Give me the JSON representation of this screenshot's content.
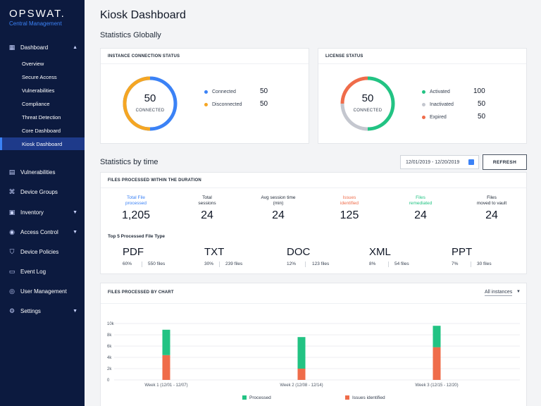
{
  "brand": {
    "name": "OPSWAT.",
    "subtitle": "Central Management"
  },
  "sidebar": {
    "dashboard": {
      "label": "Dashboard",
      "icon": "grid-icon"
    },
    "sub_items": [
      {
        "label": "Overview"
      },
      {
        "label": "Secure Access"
      },
      {
        "label": "Vulnerabilities"
      },
      {
        "label": "Compliance"
      },
      {
        "label": "Threat Detection"
      },
      {
        "label": "Core Dashboard"
      },
      {
        "label": "Kiosk Dashboard"
      }
    ],
    "items": [
      {
        "label": "Vulnerabilities",
        "icon": "document-icon"
      },
      {
        "label": "Device Groups",
        "icon": "network-icon"
      },
      {
        "label": "Inventory",
        "icon": "clipboard-icon"
      },
      {
        "label": "Access Control",
        "icon": "shield-user-icon"
      },
      {
        "label": "Device Policies",
        "icon": "shield-icon"
      },
      {
        "label": "Event Log",
        "icon": "log-icon"
      },
      {
        "label": "User Management",
        "icon": "user-icon"
      },
      {
        "label": "Settings",
        "icon": "gear-icon"
      }
    ]
  },
  "page": {
    "title": "Kiosk Dashboard",
    "section_global": "Statistics Globally",
    "section_time": "Statistics by time"
  },
  "instance_status": {
    "title": "INSTANCE CONNECTION STATUS",
    "center_value": "50",
    "center_label": "CONNECTED",
    "legend": [
      {
        "label": "Connected",
        "value": "50",
        "color": "#3b82f6"
      },
      {
        "label": "Disconnected",
        "value": "50",
        "color": "#f5a623"
      }
    ]
  },
  "license_status": {
    "title": "LICENSE STATUS",
    "center_value": "50",
    "center_label": "CONNECTED",
    "legend": [
      {
        "label": "Activated",
        "value": "100",
        "color": "#22c383"
      },
      {
        "label": "Inactivated",
        "value": "50",
        "color": "#c4c7cf"
      },
      {
        "label": "Expired",
        "value": "50",
        "color": "#ef6c4a"
      }
    ]
  },
  "date_range": {
    "value": "12/01/2019 - 12/20/2019"
  },
  "refresh_label": "REFRESH",
  "files_processed": {
    "title": "FILES PROCESSED WITHIN THE DURATION",
    "stats": [
      {
        "line1": "Total File",
        "line2": "processed",
        "value": "1,205",
        "color": "#3b82f6"
      },
      {
        "line1": "Total",
        "line2": "sessions",
        "value": "24",
        "color": "#1f2937"
      },
      {
        "line1": "Avg session time",
        "line2": "(min)",
        "value": "24",
        "color": "#1f2937"
      },
      {
        "line1": "Issues",
        "line2": "identified",
        "value": "125",
        "color": "#ef6c4a"
      },
      {
        "line1": "Files",
        "line2": "remediated",
        "value": "24",
        "color": "#22c383"
      },
      {
        "line1": "Files",
        "line2": "moved to vault",
        "value": "24",
        "color": "#1f2937"
      }
    ],
    "top5_title": "Top 5 Processed File Type",
    "file_types": [
      {
        "name": "PDF",
        "pct": "60%",
        "files": "550 files"
      },
      {
        "name": "TXT",
        "pct": "30%",
        "files": "239 files"
      },
      {
        "name": "DOC",
        "pct": "12%",
        "files": "123 files"
      },
      {
        "name": "XML",
        "pct": "8%",
        "files": "54 files"
      },
      {
        "name": "PPT",
        "pct": "7%",
        "files": "30 files"
      }
    ]
  },
  "chart_card": {
    "title": "FILES PROCESSED BY CHART",
    "filter": "All instances"
  },
  "chart_data": {
    "type": "bar",
    "stacked": true,
    "categories": [
      "Week 1 (12/01 - 12/07)",
      "Week 2 (12/08 - 12/14)",
      "Week 3 (12/15 - 12/20)"
    ],
    "series": [
      {
        "name": "Issues identified",
        "values": [
          4400,
          2000,
          5800
        ],
        "color": "#ef6c4a"
      },
      {
        "name": "Processed",
        "values": [
          4500,
          5600,
          3800
        ],
        "color": "#22c383"
      }
    ],
    "yticks": [
      "0",
      "2k",
      "4k",
      "6k",
      "8k",
      "10k"
    ],
    "ylim": [
      0,
      10000
    ],
    "legend": [
      "Processed",
      "Issues identified"
    ]
  }
}
